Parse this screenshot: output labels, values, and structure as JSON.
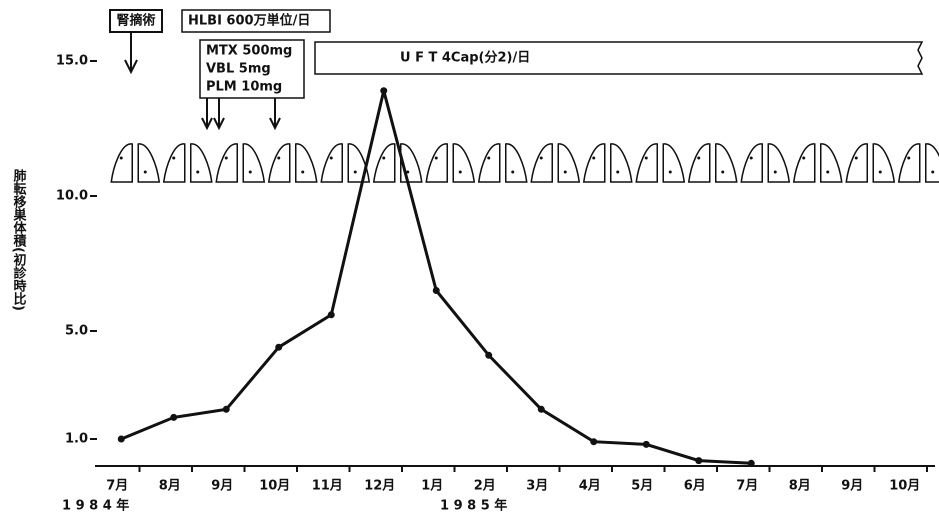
{
  "chart_data": {
    "type": "line",
    "ylabel": "肺転移巣体積(初診時比)",
    "categories": [
      "7月",
      "8月",
      "9月",
      "10月",
      "11月",
      "12月",
      "1月",
      "2月",
      "3月",
      "4月",
      "5月",
      "6月",
      "7月",
      "8月",
      "9月",
      "10月"
    ],
    "year_labels": [
      "1 9 8 4 年",
      "1 9 8 5 年"
    ],
    "series": [
      {
        "color": "#111111",
        "values": [
          1.0,
          1.8,
          2.1,
          4.4,
          5.6,
          13.9,
          6.5,
          4.1,
          2.1,
          0.9,
          0.8,
          0.2,
          0.1,
          null,
          null,
          null
        ]
      }
    ],
    "ylim": [
      0,
      17
    ],
    "yticks": [
      {
        "value": 1,
        "label": "1.0"
      },
      {
        "value": 5,
        "label": "5.0"
      },
      {
        "value": 10,
        "label": "10.0"
      },
      {
        "value": 15,
        "label": "15.0"
      }
    ],
    "annotations": [
      "腎摘術",
      "HLBI 600万単位/日",
      "MTX 500mg",
      "VBL 5mg",
      "PLM 10mg",
      "U F T 4Cap(分2)/日"
    ]
  }
}
